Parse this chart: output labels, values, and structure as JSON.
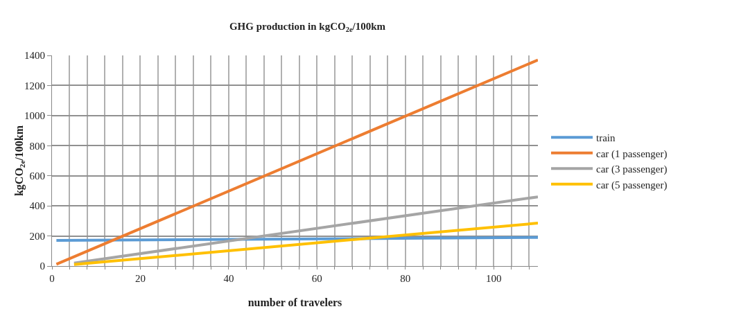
{
  "chart_data": {
    "type": "line",
    "title": "GHG production in kgCO$_{2e}$/100km",
    "xlabel": "number of travelers",
    "ylabel": "kgCO$_{2e}$/100km",
    "series": [
      {
        "name": "train",
        "color": "#5b9bd5",
        "x": [
          1,
          110
        ],
        "values": [
          170,
          190
        ]
      },
      {
        "name": "car (1 passenger)",
        "color": "#ed7d31",
        "x": [
          1,
          110
        ],
        "values": [
          12,
          1370
        ]
      },
      {
        "name": "car (3 passenger)",
        "color": "#a5a5a5",
        "x": [
          5,
          110
        ],
        "values": [
          20,
          460
        ]
      },
      {
        "name": "car (5 passenger)",
        "color": "#ffc000",
        "x": [
          5,
          110
        ],
        "values": [
          10,
          285
        ]
      }
    ],
    "xlim": [
      0,
      110
    ],
    "xticks": [
      0,
      {
        "value": 4,
        "label": null
      },
      {
        "value": 8,
        "label": null
      },
      {
        "value": 12,
        "label": null
      },
      {
        "value": 16,
        "label": null
      },
      20,
      {
        "value": 24,
        "label": null
      },
      {
        "value": 28,
        "label": null
      },
      {
        "value": 32,
        "label": null
      },
      {
        "value": 36,
        "label": null
      },
      40,
      {
        "value": 44,
        "label": null
      },
      {
        "value": 48,
        "label": null
      },
      {
        "value": 52,
        "label": null
      },
      {
        "value": 56,
        "label": null
      },
      60,
      {
        "value": 64,
        "label": null
      },
      {
        "value": 68,
        "label": null
      },
      {
        "value": 72,
        "label": null
      },
      {
        "value": 76,
        "label": null
      },
      80,
      {
        "value": 84,
        "label": null
      },
      {
        "value": 88,
        "label": null
      },
      {
        "value": 92,
        "label": null
      },
      {
        "value": 96,
        "label": null
      },
      100,
      {
        "value": 104,
        "label": null
      },
      {
        "value": 108,
        "label": null
      }
    ],
    "ylim": [
      0,
      1400
    ],
    "yticks": [
      0,
      200,
      400,
      600,
      800,
      1000,
      1200,
      1400
    ],
    "grid": true,
    "legend": "right",
    "marker": "none",
    "line_style": "solid"
  }
}
